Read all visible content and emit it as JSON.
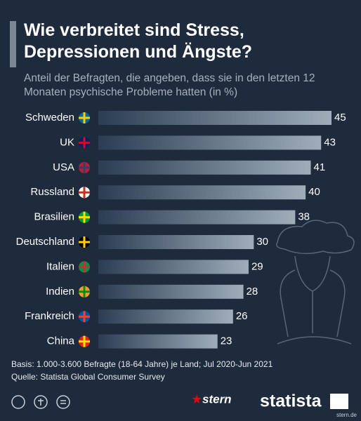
{
  "chart_data": {
    "type": "bar",
    "title": "Wie verbreitet sind Stress, Depressionen und Ängste?",
    "subtitle": "Anteil der Befragten, die angeben, dass sie in den letzten 12 Monaten psychische Probleme hatten (in %)",
    "categories": [
      "Schweden",
      "UK",
      "USA",
      "Russland",
      "Brasilien",
      "Deutschland",
      "Italien",
      "Indien",
      "Frankreich",
      "China"
    ],
    "values": [
      45,
      43,
      41,
      40,
      38,
      30,
      29,
      28,
      26,
      23
    ],
    "color": "#9fadbb",
    "notes": [
      "Basis: 1.000-3.600 Befragte (18-64 Jahre) je Land; Jul 2020-Jun 2021",
      "Quelle: Statista Global Consumer Survey"
    ],
    "logos": [
      "stern",
      "statista",
      "stern.de"
    ]
  }
}
